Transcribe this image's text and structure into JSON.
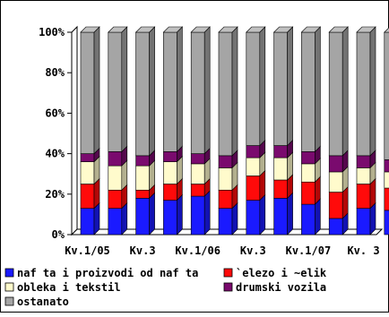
{
  "chart_data": {
    "type": "bar",
    "stacked": true,
    "percent_stacked": true,
    "bars_3d": true,
    "categories": [
      "",
      "",
      "",
      "",
      "",
      "",
      "",
      "",
      "",
      "",
      "",
      ""
    ],
    "x_tick_labels": [
      {
        "category_index": 0,
        "label": "Kv.1/05"
      },
      {
        "category_index": 2,
        "label": "Kv.3"
      },
      {
        "category_index": 4,
        "label": "Kv.1/06"
      },
      {
        "category_index": 6,
        "label": "Kv.3"
      },
      {
        "category_index": 8,
        "label": "Kv.1/07"
      },
      {
        "category_index": 10,
        "label": "Kv. 3"
      }
    ],
    "series": [
      {
        "name": "naf ta i proizvodi od naf ta",
        "color": "#1a1aff",
        "values": [
          13,
          13,
          18,
          17,
          19,
          13,
          17,
          18,
          15,
          8,
          13,
          12
        ]
      },
      {
        "name": "`elezo i ~elik",
        "color": "#ff0a0a",
        "values": [
          12,
          9,
          4,
          8,
          6,
          9,
          12,
          9,
          11,
          13,
          12,
          11
        ]
      },
      {
        "name": "obleka i tekstil",
        "color": "#fffbcc",
        "values": [
          11,
          12,
          12,
          11,
          10,
          11,
          9,
          11,
          9,
          10,
          8,
          8
        ]
      },
      {
        "name": "drumski vozila",
        "color": "#7a0a6e",
        "values": [
          4,
          7,
          5,
          5,
          5,
          6,
          6,
          6,
          6,
          8,
          6,
          6
        ]
      },
      {
        "name": "ostanato",
        "color": "#a5a5a5",
        "values": [
          60,
          59,
          61,
          59,
          60,
          61,
          56,
          56,
          59,
          61,
          61,
          63
        ]
      }
    ],
    "y_ticks": [
      "0%",
      "20%",
      "40%",
      "60%",
      "80%",
      "100%"
    ],
    "ylim": [
      0,
      100
    ],
    "grid": false,
    "legend_position": "bottom"
  }
}
